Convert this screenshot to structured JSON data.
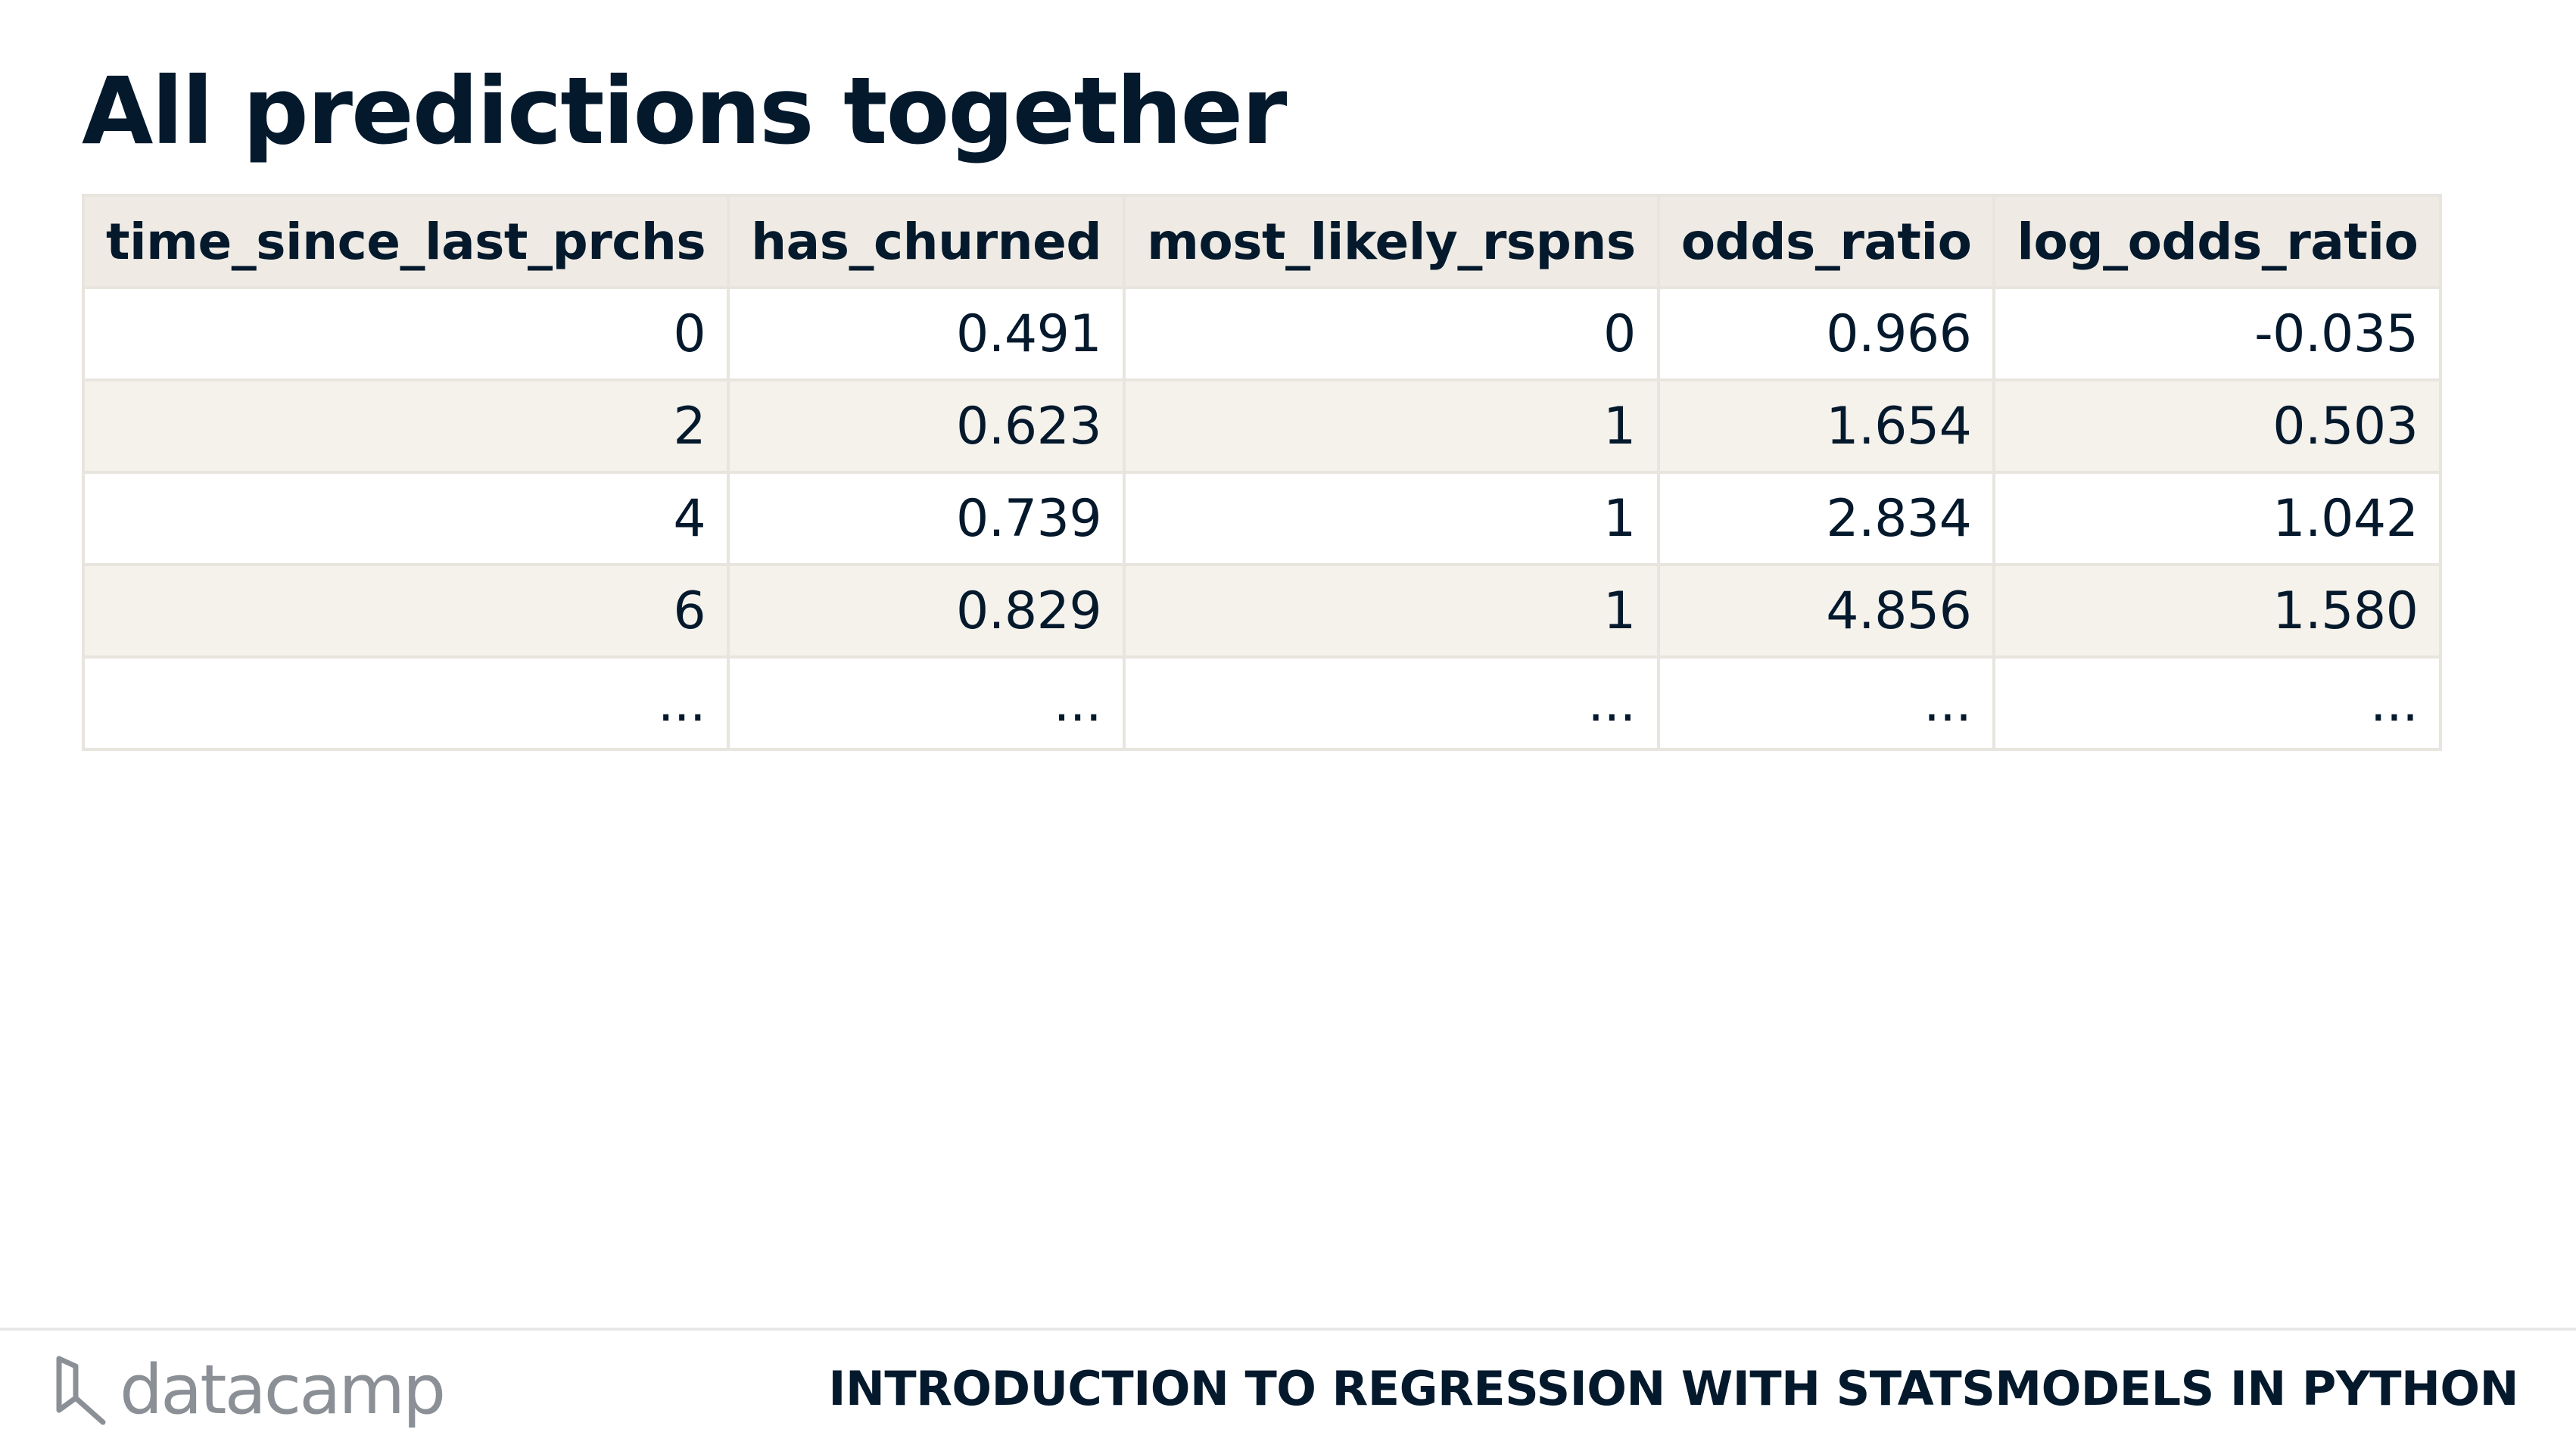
{
  "slide": {
    "title": "All predictions together"
  },
  "table": {
    "columns": [
      "time_since_last_prchs",
      "has_churned",
      "most_likely_rspns",
      "odds_ratio",
      "log_odds_ratio"
    ],
    "rows": [
      [
        "0",
        "0.491",
        "0",
        "0.966",
        "-0.035"
      ],
      [
        "2",
        "0.623",
        "1",
        "1.654",
        "0.503"
      ],
      [
        "4",
        "0.739",
        "1",
        "2.834",
        "1.042"
      ],
      [
        "6",
        "0.829",
        "1",
        "4.856",
        "1.580"
      ],
      [
        "...",
        "...",
        "...",
        "...",
        "..."
      ]
    ]
  },
  "footer": {
    "logo_text": "datacamp",
    "course_title": "INTRODUCTION TO REGRESSION WITH STATSMODELS IN PYTHON"
  },
  "colors": {
    "text": "#05192d",
    "header_bg": "#efebe4",
    "stripe_bg": "#f5f2ec",
    "border": "#e8e5de",
    "logo_gray": "#8b9096"
  }
}
